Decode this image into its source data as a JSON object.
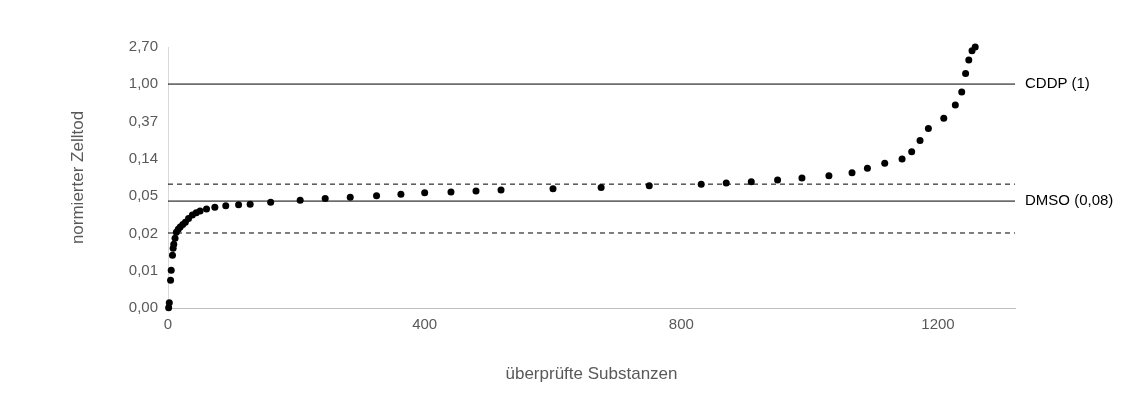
{
  "chart_data": {
    "type": "scatter",
    "xlabel": "überprüfte Substanzen",
    "ylabel": "normierter Zelltod",
    "log": "y",
    "grid": false,
    "legend": false,
    "marker": "circle",
    "xlim": [
      0,
      1320
    ],
    "xticks": [
      0,
      400,
      800,
      1200
    ],
    "ylim": [
      0.00248,
      2.7
    ],
    "yticks": [
      {
        "value": 0.00248,
        "label": "0,00"
      },
      {
        "value": 0.00674,
        "label": "0,01"
      },
      {
        "value": 0.0183,
        "label": "0,02"
      },
      {
        "value": 0.0498,
        "label": "0,05"
      },
      {
        "value": 0.135,
        "label": "0,14"
      },
      {
        "value": 0.368,
        "label": "0,37"
      },
      {
        "value": 1,
        "label": "1,00"
      },
      {
        "value": 2.7,
        "label": "2,70"
      }
    ],
    "series": [
      {
        "color": "#000000",
        "x": [
          1,
          2,
          4,
          5,
          7,
          8,
          9,
          11,
          13,
          16,
          19,
          23,
          27,
          32,
          38,
          44,
          50,
          60,
          73,
          90,
          110,
          128,
          160,
          206,
          245,
          284,
          325,
          363,
          400,
          441,
          480,
          519,
          600,
          675,
          750,
          831,
          870,
          909,
          950,
          988,
          1030,
          1066,
          1090,
          1117,
          1144,
          1159,
          1172,
          1185,
          1209,
          1227,
          1237,
          1243,
          1248,
          1253,
          1258
        ],
        "values": [
          0.0025,
          0.00285,
          0.0052,
          0.0068,
          0.0102,
          0.0123,
          0.0137,
          0.0161,
          0.0189,
          0.0205,
          0.0217,
          0.0232,
          0.0247,
          0.0272,
          0.0299,
          0.0318,
          0.0333,
          0.0351,
          0.0369,
          0.0384,
          0.0395,
          0.04,
          0.0422,
          0.0446,
          0.0465,
          0.0483,
          0.0503,
          0.0523,
          0.0544,
          0.0556,
          0.057,
          0.0584,
          0.0605,
          0.0627,
          0.0655,
          0.0685,
          0.0705,
          0.0728,
          0.0765,
          0.0805,
          0.086,
          0.093,
          0.105,
          0.12,
          0.134,
          0.163,
          0.22,
          0.305,
          0.399,
          0.57,
          0.81,
          1.33,
          1.9,
          2.45,
          2.7
        ]
      }
    ],
    "ref_lines": [
      {
        "axis": "y",
        "value": 1,
        "label": "CDDP (1)",
        "color": "#000000",
        "line_style": "solid"
      },
      {
        "axis": "y",
        "value": 0.0435,
        "label": "DMSO (0,08)",
        "color": "#000000",
        "line_style": "solid"
      },
      {
        "axis": "y",
        "value": 0.0685,
        "color": "#000000",
        "line_style": "dashed"
      },
      {
        "axis": "y",
        "value": 0.0185,
        "color": "#000000",
        "line_style": "dashed"
      }
    ]
  }
}
